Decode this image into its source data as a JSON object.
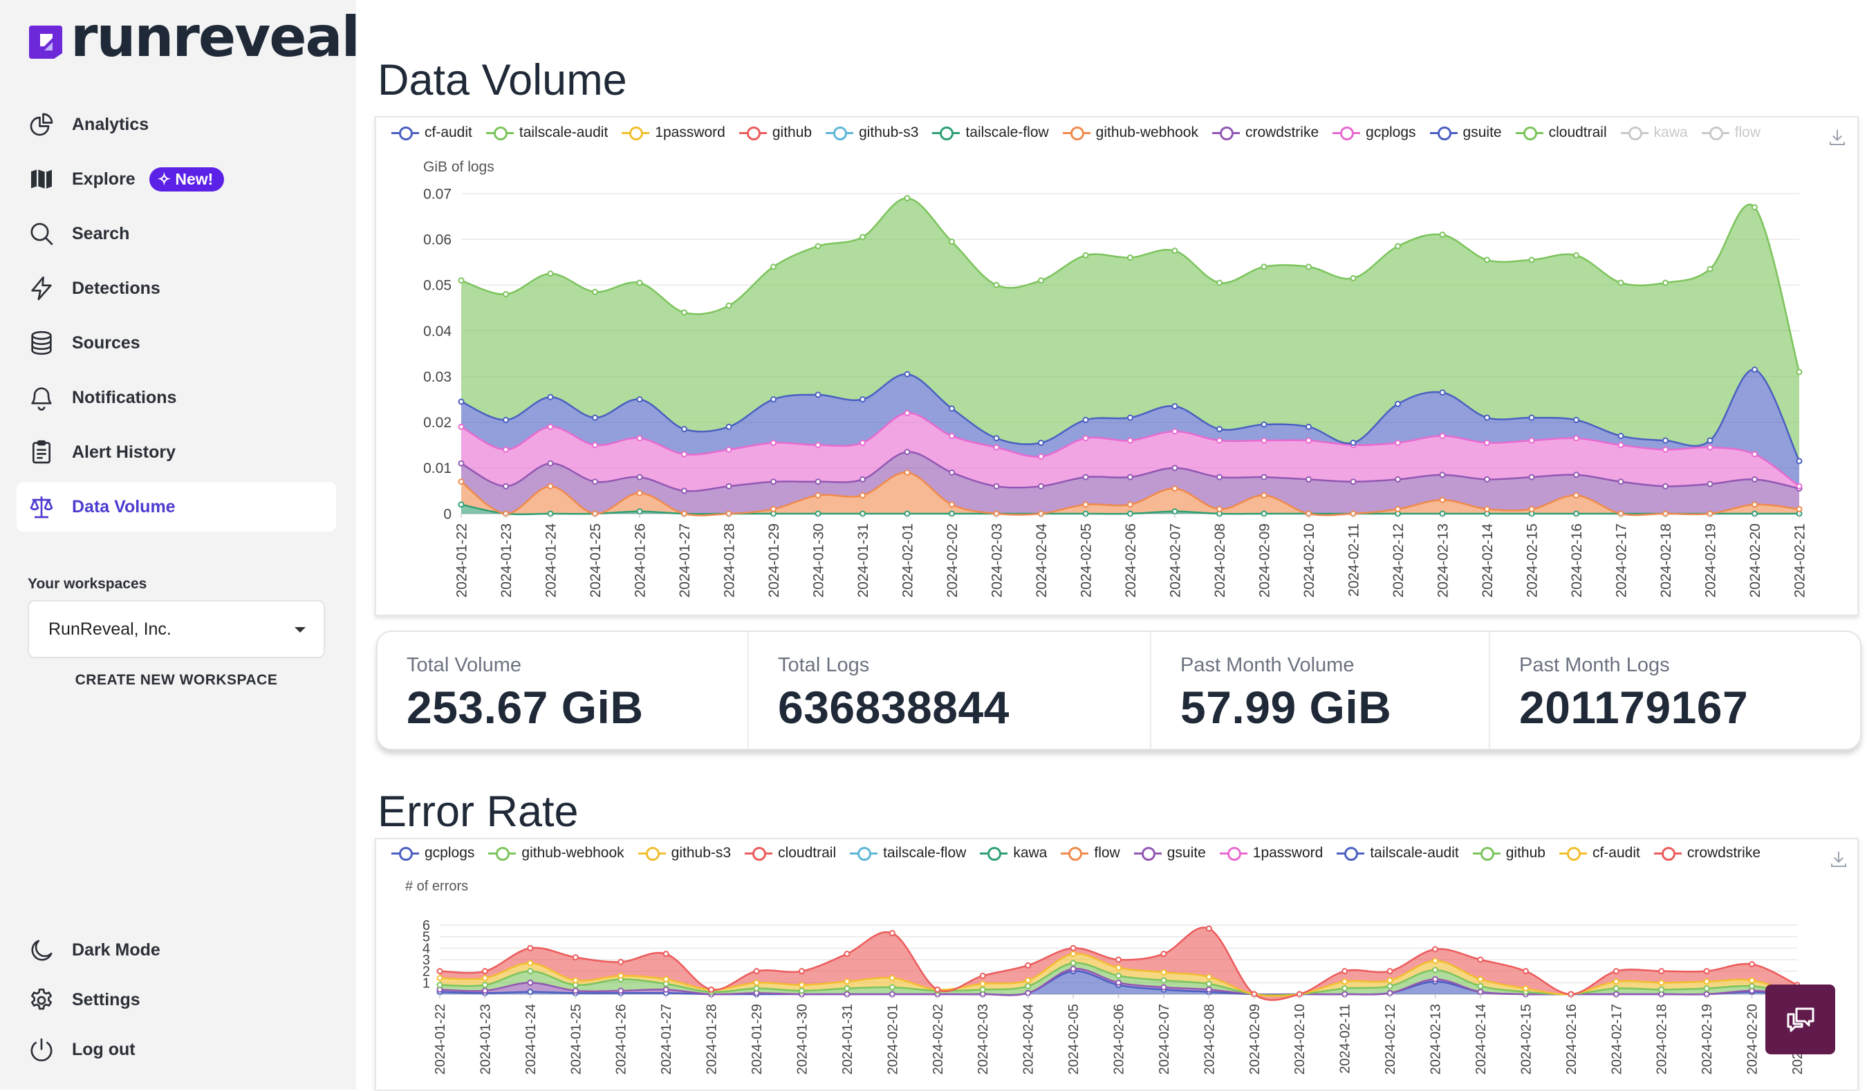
{
  "app": {
    "logo_text": "runreveal"
  },
  "sidebar": {
    "nav": [
      {
        "label": "Analytics",
        "icon": "chart-pie-icon"
      },
      {
        "label": "Explore",
        "icon": "map-icon",
        "badge": "New!"
      },
      {
        "label": "Search",
        "icon": "search-icon"
      },
      {
        "label": "Detections",
        "icon": "bolt-icon"
      },
      {
        "label": "Sources",
        "icon": "database-icon"
      },
      {
        "label": "Notifications",
        "icon": "bell-icon"
      },
      {
        "label": "Alert History",
        "icon": "clipboard-icon"
      },
      {
        "label": "Data Volume",
        "icon": "scale-icon",
        "active": true
      }
    ],
    "workspaces_title": "Your workspaces",
    "workspace_selected": "RunReveal, Inc.",
    "create_workspace": "CREATE NEW WORKSPACE",
    "bottom": [
      {
        "label": "Dark Mode",
        "icon": "moon-icon"
      },
      {
        "label": "Settings",
        "icon": "gear-icon"
      },
      {
        "label": "Log out",
        "icon": "power-icon"
      }
    ]
  },
  "main": {
    "data_volume_title": "Data Volume",
    "error_rate_title": "Error Rate",
    "stats": [
      {
        "label": "Total Volume",
        "value": "253.67 GiB"
      },
      {
        "label": "Total Logs",
        "value": "636838844"
      },
      {
        "label": "Past Month Volume",
        "value": "57.99 GiB"
      },
      {
        "label": "Past Month Logs",
        "value": "201179167"
      }
    ]
  },
  "colors": {
    "accent": "#5b21e6",
    "active_text": "#4c3cd0",
    "chat_button": "#611a4c"
  },
  "chart_data": [
    {
      "type": "area",
      "title": "Data Volume",
      "ylabel": "GiB of logs",
      "ylim": [
        0,
        0.07
      ],
      "yticks": [
        "0",
        "0.01",
        "0.02",
        "0.03",
        "0.04",
        "0.05",
        "0.06",
        "0.07"
      ],
      "stacked": true,
      "x": [
        "2024-01-22",
        "2024-01-23",
        "2024-01-24",
        "2024-01-25",
        "2024-01-26",
        "2024-01-27",
        "2024-01-28",
        "2024-01-29",
        "2024-01-30",
        "2024-01-31",
        "2024-02-01",
        "2024-02-02",
        "2024-02-03",
        "2024-02-04",
        "2024-02-05",
        "2024-02-06",
        "2024-02-07",
        "2024-02-08",
        "2024-02-09",
        "2024-02-10",
        "2024-02-11",
        "2024-02-12",
        "2024-02-13",
        "2024-02-14",
        "2024-02-15",
        "2024-02-16",
        "2024-02-17",
        "2024-02-18",
        "2024-02-19",
        "2024-02-20",
        "2024-02-21"
      ],
      "legend": [
        {
          "name": "cf-audit",
          "color": "#4a5fc1"
        },
        {
          "name": "tailscale-audit",
          "color": "#7cc45c"
        },
        {
          "name": "1password",
          "color": "#f2be2f"
        },
        {
          "name": "github",
          "color": "#ec5b5b"
        },
        {
          "name": "github-s3",
          "color": "#5cb6d8"
        },
        {
          "name": "tailscale-flow",
          "color": "#2e9f73"
        },
        {
          "name": "github-webhook",
          "color": "#f08a4b"
        },
        {
          "name": "crowdstrike",
          "color": "#9257b3"
        },
        {
          "name": "gcplogs",
          "color": "#e86ad0"
        },
        {
          "name": "gsuite",
          "color": "#4a5fc1"
        },
        {
          "name": "cloudtrail",
          "color": "#7cc45c"
        },
        {
          "name": "kawa",
          "color": "#c9c9c9",
          "off": true
        },
        {
          "name": "flow",
          "color": "#c9c9c9",
          "off": true
        }
      ],
      "series": [
        {
          "name": "tailscale-flow",
          "color": "#2e9f73",
          "values": [
            0.002,
            0,
            0,
            0,
            0.0005,
            0,
            0,
            0,
            0,
            0,
            0,
            0,
            0,
            0,
            0,
            0,
            0.0005,
            0,
            0,
            0,
            0,
            0,
            0,
            0,
            0,
            0,
            0,
            0,
            0,
            0,
            0
          ]
        },
        {
          "name": "github-webhook",
          "color": "#f08a4b",
          "values": [
            0.005,
            0,
            0.006,
            0,
            0.004,
            0,
            0,
            0.001,
            0.004,
            0.004,
            0.009,
            0.002,
            0,
            0,
            0.002,
            0.002,
            0.005,
            0.001,
            0.004,
            0,
            0,
            0.001,
            0.003,
            0.001,
            0.001,
            0.004,
            0,
            0,
            0,
            0.002,
            0.001
          ]
        },
        {
          "name": "crowdstrike",
          "color": "#9257b3",
          "values": [
            0.004,
            0.006,
            0.005,
            0.007,
            0.0035,
            0.005,
            0.006,
            0.006,
            0.003,
            0.0035,
            0.0045,
            0.007,
            0.006,
            0.006,
            0.006,
            0.006,
            0.0045,
            0.007,
            0.004,
            0.0075,
            0.007,
            0.0065,
            0.0055,
            0.0065,
            0.007,
            0.0045,
            0.007,
            0.006,
            0.0065,
            0.0055,
            0.0045
          ]
        },
        {
          "name": "gcplogs",
          "color": "#e86ad0",
          "values": [
            0.008,
            0.008,
            0.008,
            0.008,
            0.0085,
            0.008,
            0.008,
            0.0085,
            0.008,
            0.008,
            0.0085,
            0.008,
            0.0085,
            0.0065,
            0.0085,
            0.008,
            0.008,
            0.008,
            0.008,
            0.0085,
            0.008,
            0.008,
            0.0085,
            0.008,
            0.008,
            0.008,
            0.008,
            0.008,
            0.008,
            0.0055,
            0.0005
          ]
        },
        {
          "name": "gsuite",
          "color": "#4a5fc1",
          "values": [
            0.0055,
            0.0065,
            0.0065,
            0.006,
            0.0085,
            0.0055,
            0.005,
            0.0095,
            0.011,
            0.0095,
            0.0085,
            0.006,
            0.002,
            0.003,
            0.004,
            0.005,
            0.0055,
            0.0025,
            0.0035,
            0.003,
            0.0005,
            0.0085,
            0.0095,
            0.0055,
            0.005,
            0.004,
            0.002,
            0.002,
            0.0015,
            0.0185,
            0.0055
          ]
        },
        {
          "name": "cloudtrail",
          "color": "#7cc45c",
          "values": [
            0.0265,
            0.0275,
            0.027,
            0.0275,
            0.0255,
            0.0255,
            0.0265,
            0.029,
            0.0325,
            0.0355,
            0.0385,
            0.0365,
            0.0335,
            0.0355,
            0.036,
            0.035,
            0.034,
            0.032,
            0.0345,
            0.035,
            0.036,
            0.0345,
            0.0345,
            0.0345,
            0.0345,
            0.036,
            0.0335,
            0.0345,
            0.0375,
            0.0355,
            0.0195
          ]
        }
      ]
    },
    {
      "type": "area",
      "title": "Error Rate",
      "ylabel": "# of errors",
      "ylim": [
        0,
        6
      ],
      "yticks": [
        "1",
        "2",
        "3",
        "4",
        "5",
        "6"
      ],
      "stacked": true,
      "x": [
        "2024-01-22",
        "2024-01-23",
        "2024-01-24",
        "2024-01-25",
        "2024-01-26",
        "2024-01-27",
        "2024-01-28",
        "2024-01-29",
        "2024-01-30",
        "2024-01-31",
        "2024-02-01",
        "2024-02-02",
        "2024-02-03",
        "2024-02-04",
        "2024-02-05",
        "2024-02-06",
        "2024-02-07",
        "2024-02-08",
        "2024-02-09",
        "2024-02-10",
        "2024-02-11",
        "2024-02-12",
        "2024-02-13",
        "2024-02-14",
        "2024-02-15",
        "2024-02-16",
        "2024-02-17",
        "2024-02-18",
        "2024-02-19",
        "2024-02-20",
        "2024-02-21"
      ],
      "legend": [
        {
          "name": "gcplogs",
          "color": "#4a5fc1"
        },
        {
          "name": "github-webhook",
          "color": "#7cc45c"
        },
        {
          "name": "github-s3",
          "color": "#f2be2f"
        },
        {
          "name": "cloudtrail",
          "color": "#ec5b5b"
        },
        {
          "name": "tailscale-flow",
          "color": "#5cb6d8"
        },
        {
          "name": "kawa",
          "color": "#2e9f73"
        },
        {
          "name": "flow",
          "color": "#f08a4b"
        },
        {
          "name": "gsuite",
          "color": "#9257b3"
        },
        {
          "name": "1password",
          "color": "#e86ad0"
        },
        {
          "name": "tailscale-audit",
          "color": "#4a5fc1"
        },
        {
          "name": "github",
          "color": "#7cc45c"
        },
        {
          "name": "cf-audit",
          "color": "#f2be2f"
        },
        {
          "name": "crowdstrike",
          "color": "#ec5b5b"
        }
      ],
      "series": [
        {
          "name": "gcplogs",
          "color": "#4a5fc1",
          "values": [
            0.2,
            0.1,
            0.2,
            0.1,
            0.1,
            0.1,
            0,
            0,
            0,
            0,
            0,
            0,
            0,
            0.1,
            2,
            0.8,
            0.4,
            0.2,
            0,
            0,
            0,
            0.1,
            1.1,
            0.2,
            0,
            0,
            0,
            0,
            0,
            0.2,
            0
          ]
        },
        {
          "name": "gsuite",
          "color": "#9257b3",
          "values": [
            0.2,
            0.2,
            0.8,
            0.2,
            0.2,
            0.3,
            0,
            0.1,
            0,
            0,
            0,
            0,
            0,
            0,
            0.2,
            0.2,
            0.2,
            0.2,
            0,
            0,
            0,
            0,
            0.2,
            0,
            0,
            0,
            0,
            0,
            0,
            0.1,
            0
          ]
        },
        {
          "name": "github-webhook",
          "color": "#7cc45c",
          "values": [
            0.4,
            0.5,
            1.0,
            0.5,
            1.0,
            0.5,
            0.2,
            0.4,
            0.3,
            0.5,
            0.6,
            0.3,
            0.4,
            0.6,
            0.5,
            0.6,
            0.6,
            0.5,
            0,
            0,
            0.5,
            0.6,
            0.8,
            0.5,
            0.2,
            0,
            0.5,
            0.4,
            0.5,
            0.4,
            0
          ]
        },
        {
          "name": "github-s3",
          "color": "#f2be2f",
          "values": [
            0.6,
            0.6,
            0.7,
            0.4,
            0.3,
            0.4,
            0.2,
            0.5,
            0.5,
            0.6,
            0.8,
            0.1,
            0.5,
            0.5,
            0.8,
            0.7,
            0.7,
            0.6,
            0,
            0,
            0.6,
            0.5,
            0.8,
            0.6,
            0.3,
            0,
            0.6,
            0.6,
            0.6,
            0.5,
            0
          ]
        },
        {
          "name": "cloudtrail",
          "color": "#ec5b5b",
          "values": [
            0.6,
            0.6,
            1.3,
            2.0,
            1.2,
            2.2,
            0,
            1.0,
            1.2,
            2.4,
            3.9,
            0,
            0.7,
            1.3,
            0.5,
            0.7,
            1.6,
            4.2,
            0,
            0,
            0.9,
            0.8,
            1.0,
            1.7,
            1.5,
            0,
            0.9,
            1.0,
            0.9,
            1.4,
            0.8
          ]
        }
      ]
    }
  ]
}
